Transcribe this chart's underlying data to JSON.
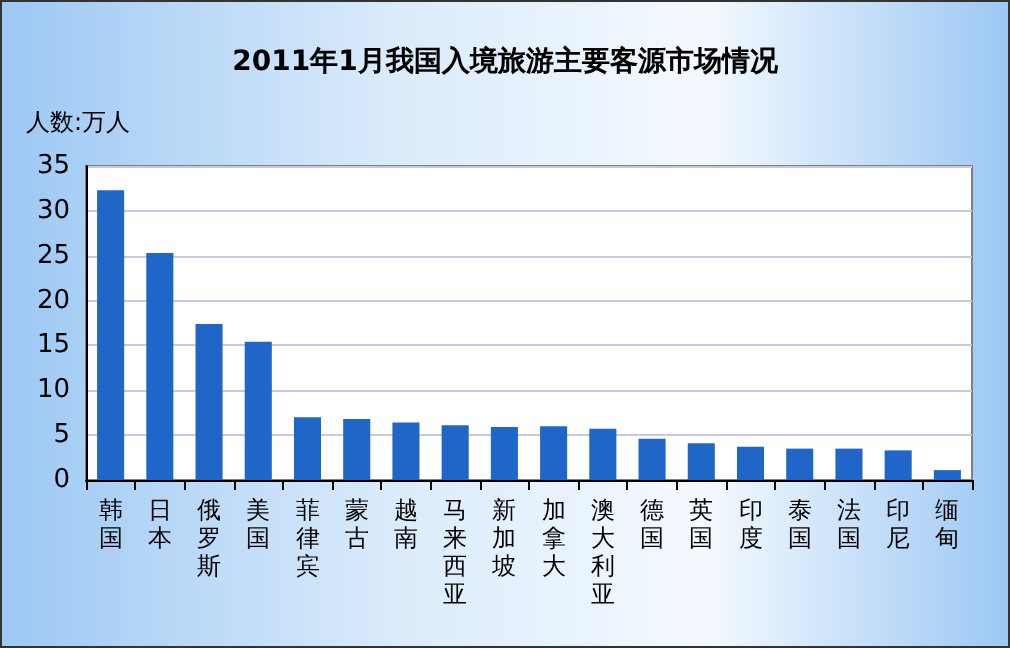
{
  "chart_data": {
    "type": "bar",
    "title": "2011年1月我国入境旅游主要客源市场情况",
    "ylabel": "人数:万人",
    "categories": [
      "韩国",
      "日本",
      "俄罗斯",
      "美国",
      "菲律宾",
      "蒙古",
      "越南",
      "马来西亚",
      "新加坡",
      "加拿大",
      "澳大利亚",
      "德国",
      "英国",
      "印度",
      "泰国",
      "法国",
      "印尼",
      "缅甸"
    ],
    "values": [
      32.3,
      25.3,
      17.4,
      15.4,
      7.0,
      6.8,
      6.4,
      6.1,
      5.9,
      6.0,
      5.7,
      4.6,
      4.1,
      3.7,
      3.5,
      3.5,
      3.3,
      1.1
    ],
    "color": "#1f66c8",
    "ylim": [
      0,
      35
    ],
    "yticks": [
      0,
      5,
      10,
      15,
      20,
      25,
      30,
      35
    ],
    "grid": "y"
  }
}
